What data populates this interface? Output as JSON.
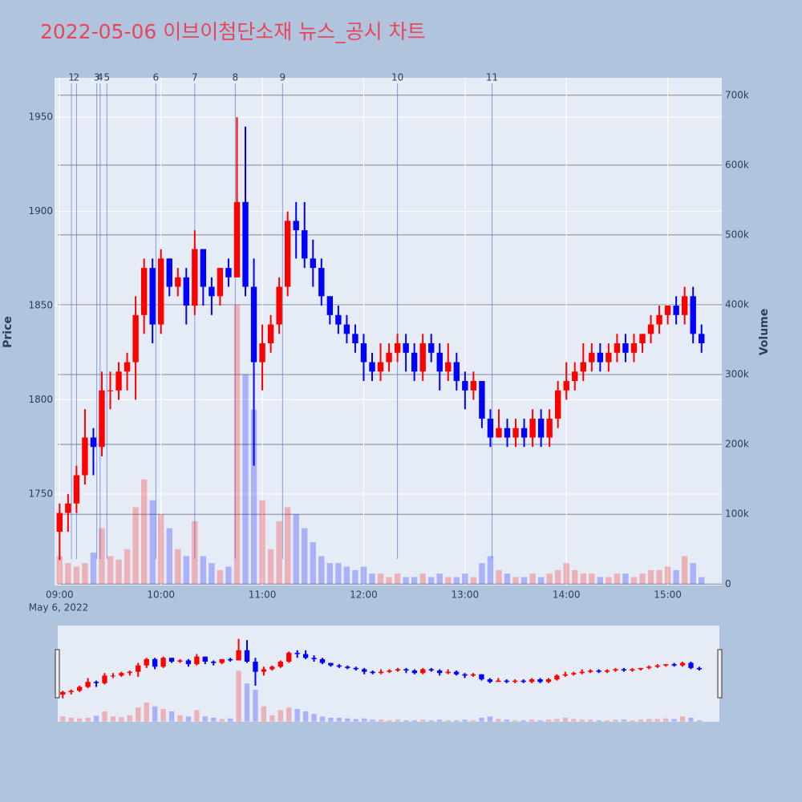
{
  "chart_data": {
    "type": "candlestick",
    "title": "2022-05-06 이브이첨단소재 뉴스_공시 차트",
    "y_title": "Price",
    "y2_title": "Volume",
    "x_date_label": "May 6, 2022",
    "up_color": "#ff0000",
    "down_color": "#0000ff",
    "xlim": [
      "08:57",
      "15:32"
    ],
    "xticks": [
      "09:00",
      "10:00",
      "11:00",
      "12:00",
      "13:00",
      "14:00",
      "15:00"
    ],
    "ylim": [
      1701.5,
      1970.9
    ],
    "yticks": [
      1750,
      1800,
      1850,
      1900,
      1950
    ],
    "y2lim": [
      -2000,
      725000
    ],
    "y2ticks": [
      0,
      {
        "value": 100000,
        "label": "100k"
      },
      {
        "value": 200000,
        "label": "200k"
      },
      {
        "value": 300000,
        "label": "300k"
      },
      {
        "value": 400000,
        "label": "400k"
      },
      {
        "value": 500000,
        "label": "500k"
      },
      {
        "value": 600000,
        "label": "600k"
      },
      {
        "value": 700000,
        "label": "700k"
      }
    ],
    "news": {
      "x": [
        "09:07",
        "09:10",
        "09:22",
        "09:24",
        "09:28",
        "09:57",
        "10:20",
        "10:44",
        "11:12",
        "12:20",
        "13:16"
      ],
      "labels": [
        "1",
        "2",
        "3",
        "4",
        "5",
        "6",
        "7",
        "8",
        "9",
        "10",
        "11"
      ],
      "color": "#5a78e0"
    },
    "x": [
      "09:00",
      "09:05",
      "09:10",
      "09:15",
      "09:20",
      "09:25",
      "09:30",
      "09:35",
      "09:40",
      "09:45",
      "09:50",
      "09:55",
      "10:00",
      "10:05",
      "10:10",
      "10:15",
      "10:20",
      "10:25",
      "10:30",
      "10:35",
      "10:40",
      "10:45",
      "10:50",
      "10:55",
      "11:00",
      "11:05",
      "11:10",
      "11:15",
      "11:20",
      "11:25",
      "11:30",
      "11:35",
      "11:40",
      "11:45",
      "11:50",
      "11:55",
      "12:00",
      "12:05",
      "12:10",
      "12:15",
      "12:20",
      "12:25",
      "12:30",
      "12:35",
      "12:40",
      "12:45",
      "12:50",
      "12:55",
      "13:00",
      "13:05",
      "13:10",
      "13:15",
      "13:20",
      "13:25",
      "13:30",
      "13:35",
      "13:40",
      "13:45",
      "13:50",
      "13:55",
      "14:00",
      "14:05",
      "14:10",
      "14:15",
      "14:20",
      "14:25",
      "14:30",
      "14:35",
      "14:40",
      "14:45",
      "14:50",
      "14:55",
      "15:00",
      "15:05",
      "15:10",
      "15:15",
      "15:20"
    ],
    "open": [
      1730,
      1740,
      1745,
      1760,
      1780,
      1775,
      1805,
      1805,
      1815,
      1820,
      1845,
      1870,
      1840,
      1875,
      1860,
      1865,
      1850,
      1880,
      1860,
      1855,
      1870,
      1865,
      1905,
      1860,
      1820,
      1830,
      1840,
      1860,
      1895,
      1890,
      1875,
      1870,
      1855,
      1845,
      1840,
      1835,
      1830,
      1820,
      1815,
      1820,
      1825,
      1830,
      1825,
      1815,
      1830,
      1825,
      1815,
      1820,
      1810,
      1805,
      1810,
      1790,
      1780,
      1785,
      1780,
      1785,
      1780,
      1790,
      1780,
      1790,
      1805,
      1810,
      1815,
      1820,
      1825,
      1820,
      1825,
      1830,
      1825,
      1830,
      1835,
      1840,
      1845,
      1850,
      1845,
      1855,
      1835
    ],
    "high": [
      1745,
      1750,
      1765,
      1795,
      1785,
      1815,
      1815,
      1820,
      1825,
      1855,
      1875,
      1875,
      1880,
      1875,
      1870,
      1870,
      1890,
      1880,
      1865,
      1870,
      1875,
      1950,
      1945,
      1875,
      1840,
      1845,
      1865,
      1900,
      1905,
      1905,
      1885,
      1875,
      1855,
      1850,
      1845,
      1840,
      1835,
      1825,
      1830,
      1830,
      1835,
      1835,
      1830,
      1835,
      1835,
      1830,
      1830,
      1825,
      1815,
      1815,
      1810,
      1795,
      1795,
      1790,
      1790,
      1790,
      1795,
      1795,
      1795,
      1810,
      1820,
      1820,
      1830,
      1830,
      1830,
      1830,
      1835,
      1835,
      1835,
      1835,
      1845,
      1850,
      1850,
      1855,
      1860,
      1860,
      1840
    ],
    "low": [
      1715,
      1730,
      1740,
      1755,
      1760,
      1770,
      1795,
      1800,
      1805,
      1800,
      1835,
      1830,
      1835,
      1855,
      1855,
      1840,
      1845,
      1850,
      1845,
      1850,
      1860,
      1865,
      1855,
      1765,
      1805,
      1825,
      1835,
      1855,
      1875,
      1870,
      1860,
      1850,
      1840,
      1835,
      1830,
      1825,
      1810,
      1810,
      1810,
      1815,
      1820,
      1815,
      1810,
      1810,
      1820,
      1805,
      1810,
      1805,
      1795,
      1800,
      1785,
      1775,
      1780,
      1775,
      1775,
      1775,
      1775,
      1775,
      1775,
      1785,
      1800,
      1805,
      1810,
      1815,
      1815,
      1815,
      1820,
      1820,
      1820,
      1825,
      1830,
      1835,
      1840,
      1840,
      1840,
      1830,
      1825
    ],
    "close": [
      1740,
      1745,
      1760,
      1780,
      1775,
      1805,
      1805,
      1815,
      1820,
      1845,
      1870,
      1840,
      1875,
      1860,
      1865,
      1850,
      1880,
      1860,
      1855,
      1870,
      1865,
      1905,
      1860,
      1820,
      1830,
      1840,
      1860,
      1895,
      1890,
      1875,
      1870,
      1855,
      1845,
      1840,
      1835,
      1830,
      1820,
      1815,
      1820,
      1825,
      1830,
      1825,
      1815,
      1830,
      1825,
      1815,
      1820,
      1810,
      1805,
      1810,
      1790,
      1780,
      1785,
      1780,
      1785,
      1780,
      1790,
      1780,
      1790,
      1805,
      1810,
      1815,
      1820,
      1825,
      1820,
      1825,
      1830,
      1825,
      1830,
      1835,
      1840,
      1845,
      1850,
      1845,
      1855,
      1835,
      1830
    ],
    "volume": [
      40000,
      30000,
      25000,
      30000,
      45000,
      80000,
      40000,
      35000,
      50000,
      110000,
      150000,
      120000,
      100000,
      80000,
      50000,
      40000,
      90000,
      40000,
      30000,
      20000,
      25000,
      400000,
      300000,
      250000,
      120000,
      50000,
      90000,
      110000,
      100000,
      80000,
      60000,
      40000,
      30000,
      30000,
      25000,
      20000,
      25000,
      15000,
      15000,
      10000,
      15000,
      10000,
      10000,
      15000,
      10000,
      15000,
      10000,
      10000,
      15000,
      10000,
      30000,
      40000,
      20000,
      15000,
      10000,
      10000,
      15000,
      10000,
      15000,
      20000,
      30000,
      20000,
      15000,
      15000,
      10000,
      10000,
      15000,
      15000,
      10000,
      15000,
      20000,
      20000,
      25000,
      20000,
      40000,
      30000,
      10000
    ]
  }
}
